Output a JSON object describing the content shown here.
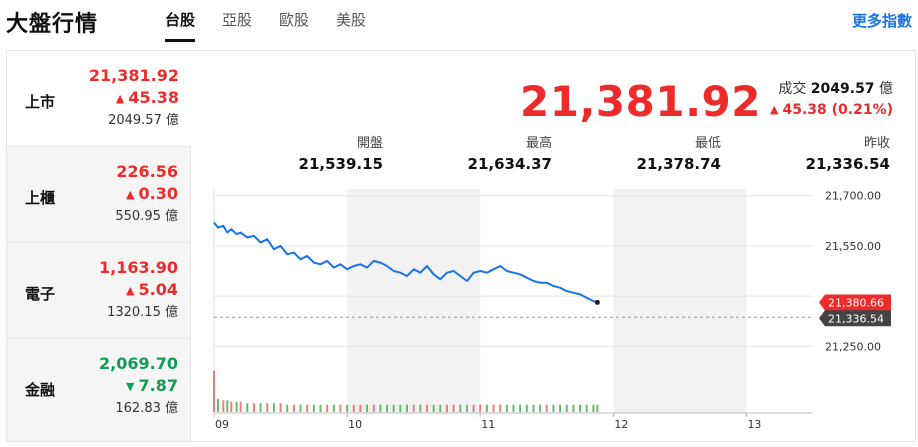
{
  "header": {
    "title": "大盤行情",
    "tabs": [
      "台股",
      "亞股",
      "歐股",
      "美股"
    ],
    "active_tab": "台股",
    "more_link": "更多指數"
  },
  "sidebar": {
    "items": [
      {
        "name": "上市",
        "price": "21,381.92",
        "change": "45.38",
        "direction": "up",
        "volume": "2049.57 億"
      },
      {
        "name": "上櫃",
        "price": "226.56",
        "change": "0.30",
        "direction": "up",
        "volume": "550.95 億"
      },
      {
        "name": "電子",
        "price": "1,163.90",
        "change": "5.04",
        "direction": "up",
        "volume": "1320.15 億"
      },
      {
        "name": "金融",
        "price": "2,069.70",
        "change": "7.87",
        "direction": "down",
        "volume": "162.83 億"
      }
    ]
  },
  "main": {
    "price": "21,381.92",
    "turnover_label": "成交",
    "turnover_value": "2049.57",
    "turnover_unit": "億",
    "change_text": "45.38 (0.21%)",
    "stats": [
      {
        "label": "開盤",
        "value": "21,539.15"
      },
      {
        "label": "最高",
        "value": "21,634.37"
      },
      {
        "label": "最低",
        "value": "21,378.74"
      },
      {
        "label": "昨收",
        "value": "21,336.54"
      }
    ]
  },
  "colors": {
    "up": "#ee2b2b",
    "down": "#0f9d58",
    "line": "#1a73e8",
    "link": "#1a73e8"
  },
  "chart_data": {
    "type": "line",
    "x_ticks": [
      "09",
      "10",
      "11",
      "12",
      "13"
    ],
    "y_ticks": [
      "21,700.00",
      "21,550.00",
      "21,250.00"
    ],
    "ylim": [
      21200,
      21720
    ],
    "previous_close": 21336.54,
    "previous_close_label": "21,336.54",
    "last_value": 21380.66,
    "last_label": "21,380.66",
    "x_range_hours": [
      9,
      13.5
    ],
    "series": [
      {
        "x": [
          9.0,
          9.03,
          9.07,
          9.1,
          9.13,
          9.17,
          9.2,
          9.25,
          9.3,
          9.35,
          9.4,
          9.45,
          9.5,
          9.55,
          9.6,
          9.65,
          9.7,
          9.75,
          9.8,
          9.85,
          9.9,
          9.95,
          10.0,
          10.05,
          10.1,
          10.15,
          10.2,
          10.25,
          10.3,
          10.35,
          10.4,
          10.45,
          10.5,
          10.55,
          10.6,
          10.65,
          10.7,
          10.75,
          10.8,
          10.85,
          10.9,
          10.95,
          11.0,
          11.05,
          11.1,
          11.15,
          11.2,
          11.25,
          11.3,
          11.35,
          11.4,
          11.45,
          11.5,
          11.55,
          11.6,
          11.65,
          11.7,
          11.75,
          11.8,
          11.85,
          11.88
        ],
        "values": [
          21620,
          21605,
          21610,
          21590,
          21600,
          21585,
          21590,
          21575,
          21580,
          21560,
          21570,
          21540,
          21550,
          21525,
          21530,
          21510,
          21520,
          21500,
          21495,
          21505,
          21485,
          21495,
          21480,
          21490,
          21495,
          21485,
          21505,
          21500,
          21490,
          21475,
          21470,
          21460,
          21480,
          21470,
          21490,
          21465,
          21450,
          21470,
          21475,
          21460,
          21445,
          21470,
          21475,
          21470,
          21480,
          21490,
          21475,
          21470,
          21465,
          21455,
          21445,
          21440,
          21440,
          21430,
          21425,
          21415,
          21410,
          21405,
          21395,
          21385,
          21381
        ]
      }
    ],
    "volume_values": [
      28,
      9,
      8,
      8,
      7,
      7,
      7,
      6,
      6,
      6,
      6,
      6,
      6,
      5,
      5,
      5,
      5,
      5,
      5,
      5,
      5,
      5,
      5,
      5,
      5,
      5,
      5,
      5,
      5,
      5,
      5,
      5,
      5,
      5,
      5,
      5,
      5,
      5,
      5,
      5,
      5,
      5,
      5,
      5,
      5,
      5,
      5,
      5,
      5,
      5,
      5,
      5,
      5,
      5,
      5,
      5,
      5,
      5,
      5,
      5,
      5
    ]
  }
}
